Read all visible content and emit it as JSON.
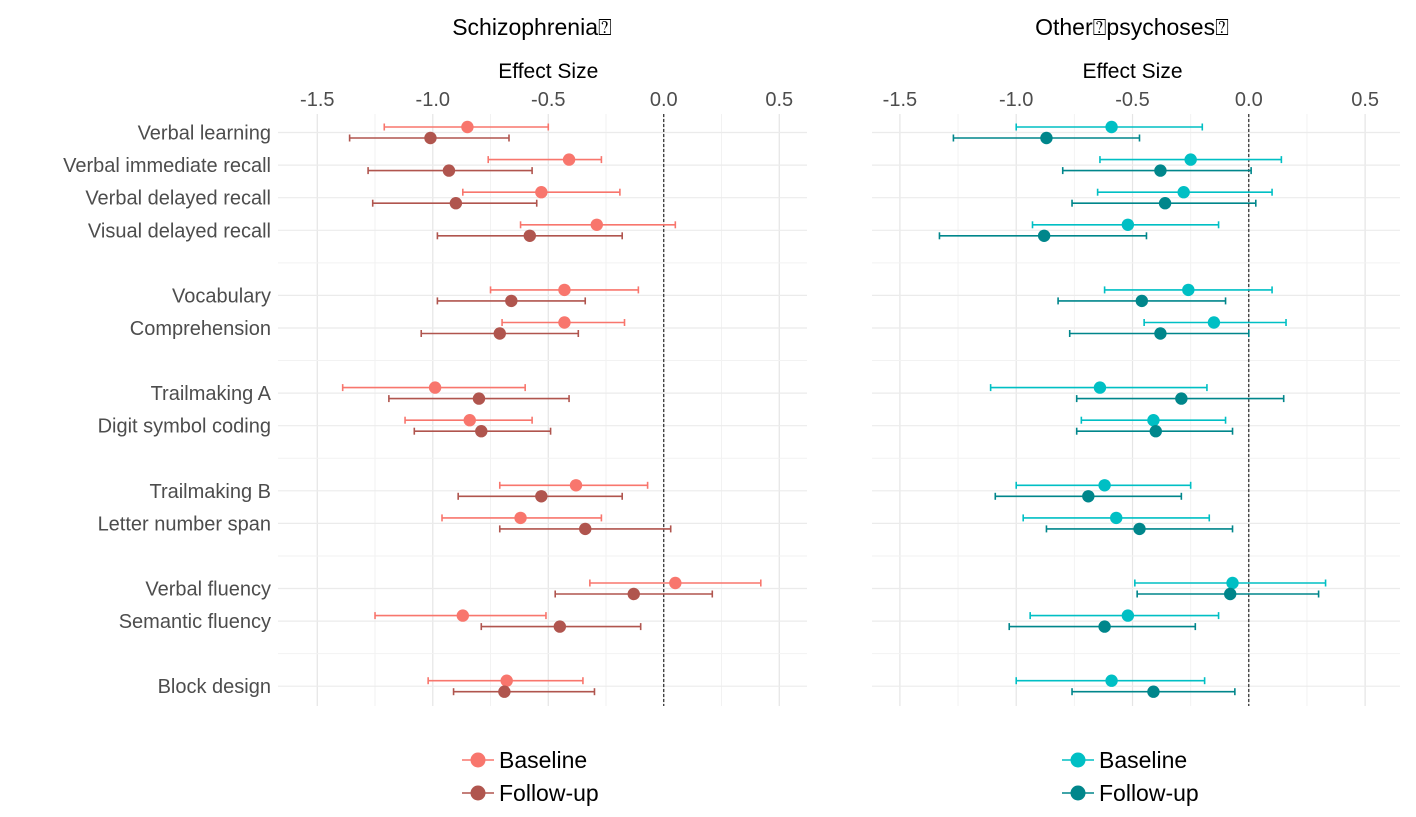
{
  "chart_data": [
    {
      "type": "forest",
      "title": "Schizophrenia⍰",
      "xlabel": "Effect Size",
      "xlim": [
        -1.67,
        0.62
      ],
      "xticks": [
        -1.5,
        -1.0,
        -0.5,
        0.0,
        0.5
      ],
      "xtick_labels": [
        "-1.5",
        "-1.0",
        "-0.5",
        "0.0",
        "0.5"
      ],
      "reference_line": 0.0,
      "grid": true,
      "legend_position": "bottom",
      "categories": [
        "Verbal learning",
        "Verbal immediate recall",
        "Verbal delayed recall",
        "Visual delayed recall",
        "Vocabulary",
        "Comprehension",
        "Trailmaking A",
        "Digit symbol coding",
        "Trailmaking B",
        "Letter number span",
        "Verbal fluency",
        "Semantic fluency",
        "Block design"
      ],
      "series": [
        {
          "name": "Baseline",
          "color": "#F8766D",
          "estimate": [
            -0.85,
            -0.41,
            -0.53,
            -0.29,
            -0.43,
            -0.43,
            -0.99,
            -0.84,
            -0.38,
            -0.62,
            0.05,
            -0.87,
            -0.68
          ],
          "lower": [
            -1.21,
            -0.76,
            -0.87,
            -0.62,
            -0.75,
            -0.7,
            -1.39,
            -1.12,
            -0.71,
            -0.96,
            -0.32,
            -1.25,
            -1.02
          ],
          "upper": [
            -0.5,
            -0.27,
            -0.19,
            0.05,
            -0.11,
            -0.17,
            -0.6,
            -0.57,
            -0.07,
            -0.27,
            0.42,
            -0.51,
            -0.35
          ]
        },
        {
          "name": "Follow-up",
          "color": "#B0554E",
          "estimate": [
            -1.01,
            -0.93,
            -0.9,
            -0.58,
            -0.66,
            -0.71,
            -0.8,
            -0.79,
            -0.53,
            -0.34,
            -0.13,
            -0.45,
            -0.69
          ],
          "lower": [
            -1.36,
            -1.28,
            -1.26,
            -0.98,
            -0.98,
            -1.05,
            -1.19,
            -1.08,
            -0.89,
            -0.71,
            -0.47,
            -0.79,
            -0.91
          ],
          "upper": [
            -0.67,
            -0.57,
            -0.55,
            -0.18,
            -0.34,
            -0.37,
            -0.41,
            -0.49,
            -0.18,
            0.03,
            0.21,
            -0.1,
            -0.3
          ]
        }
      ]
    },
    {
      "type": "forest",
      "title": "Other⍰psychoses⍰",
      "xlabel": "Effect Size",
      "xlim": [
        -1.62,
        0.65
      ],
      "xticks": [
        -1.5,
        -1.0,
        -0.5,
        0.0,
        0.5
      ],
      "xtick_labels": [
        "-1.5",
        "-1.0",
        "-0.5",
        "0.0",
        "0.5"
      ],
      "reference_line": 0.0,
      "grid": true,
      "legend_position": "bottom",
      "categories": [
        "Verbal learning",
        "Verbal immediate recall",
        "Verbal delayed recall",
        "Visual delayed recall",
        "Vocabulary",
        "Comprehension",
        "Trailmaking A",
        "Digit symbol coding",
        "Trailmaking B",
        "Letter number span",
        "Verbal fluency",
        "Semantic fluency",
        "Block design"
      ],
      "series": [
        {
          "name": "Baseline",
          "color": "#00BFC4",
          "estimate": [
            -0.59,
            -0.25,
            -0.28,
            -0.52,
            -0.26,
            -0.15,
            -0.64,
            -0.41,
            -0.62,
            -0.57,
            -0.07,
            -0.52,
            -0.59
          ],
          "lower": [
            -1.0,
            -0.64,
            -0.65,
            -0.93,
            -0.62,
            -0.45,
            -1.11,
            -0.72,
            -1.0,
            -0.97,
            -0.49,
            -0.94,
            -1.0
          ],
          "upper": [
            -0.2,
            0.14,
            0.1,
            -0.13,
            0.1,
            0.16,
            -0.18,
            -0.1,
            -0.25,
            -0.17,
            0.33,
            -0.13,
            -0.19
          ]
        },
        {
          "name": "Follow-up",
          "color": "#00868B",
          "estimate": [
            -0.87,
            -0.38,
            -0.36,
            -0.88,
            -0.46,
            -0.38,
            -0.29,
            -0.4,
            -0.69,
            -0.47,
            -0.08,
            -0.62,
            -0.41
          ],
          "lower": [
            -1.27,
            -0.8,
            -0.76,
            -1.33,
            -0.82,
            -0.77,
            -0.74,
            -0.74,
            -1.09,
            -0.87,
            -0.48,
            -1.03,
            -0.76
          ],
          "upper": [
            -0.47,
            0.01,
            0.03,
            -0.44,
            -0.1,
            0.0,
            0.15,
            -0.07,
            -0.29,
            -0.07,
            0.3,
            -0.23,
            -0.06
          ]
        }
      ]
    }
  ]
}
